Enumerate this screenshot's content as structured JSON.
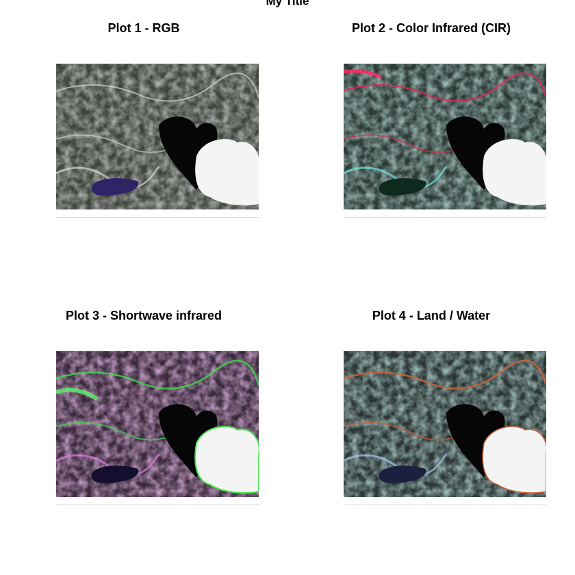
{
  "title": "My Title",
  "panels": [
    {
      "title": "Plot 1 - RGB"
    },
    {
      "title": "Plot 2 - Color Infrared (CIR)"
    },
    {
      "title": "Plot 3 - Shortwave infrared"
    },
    {
      "title": "Plot 4 - Land / Water"
    }
  ],
  "colors": {
    "background": "#ffffff",
    "baseline": "#d9d9d9"
  }
}
